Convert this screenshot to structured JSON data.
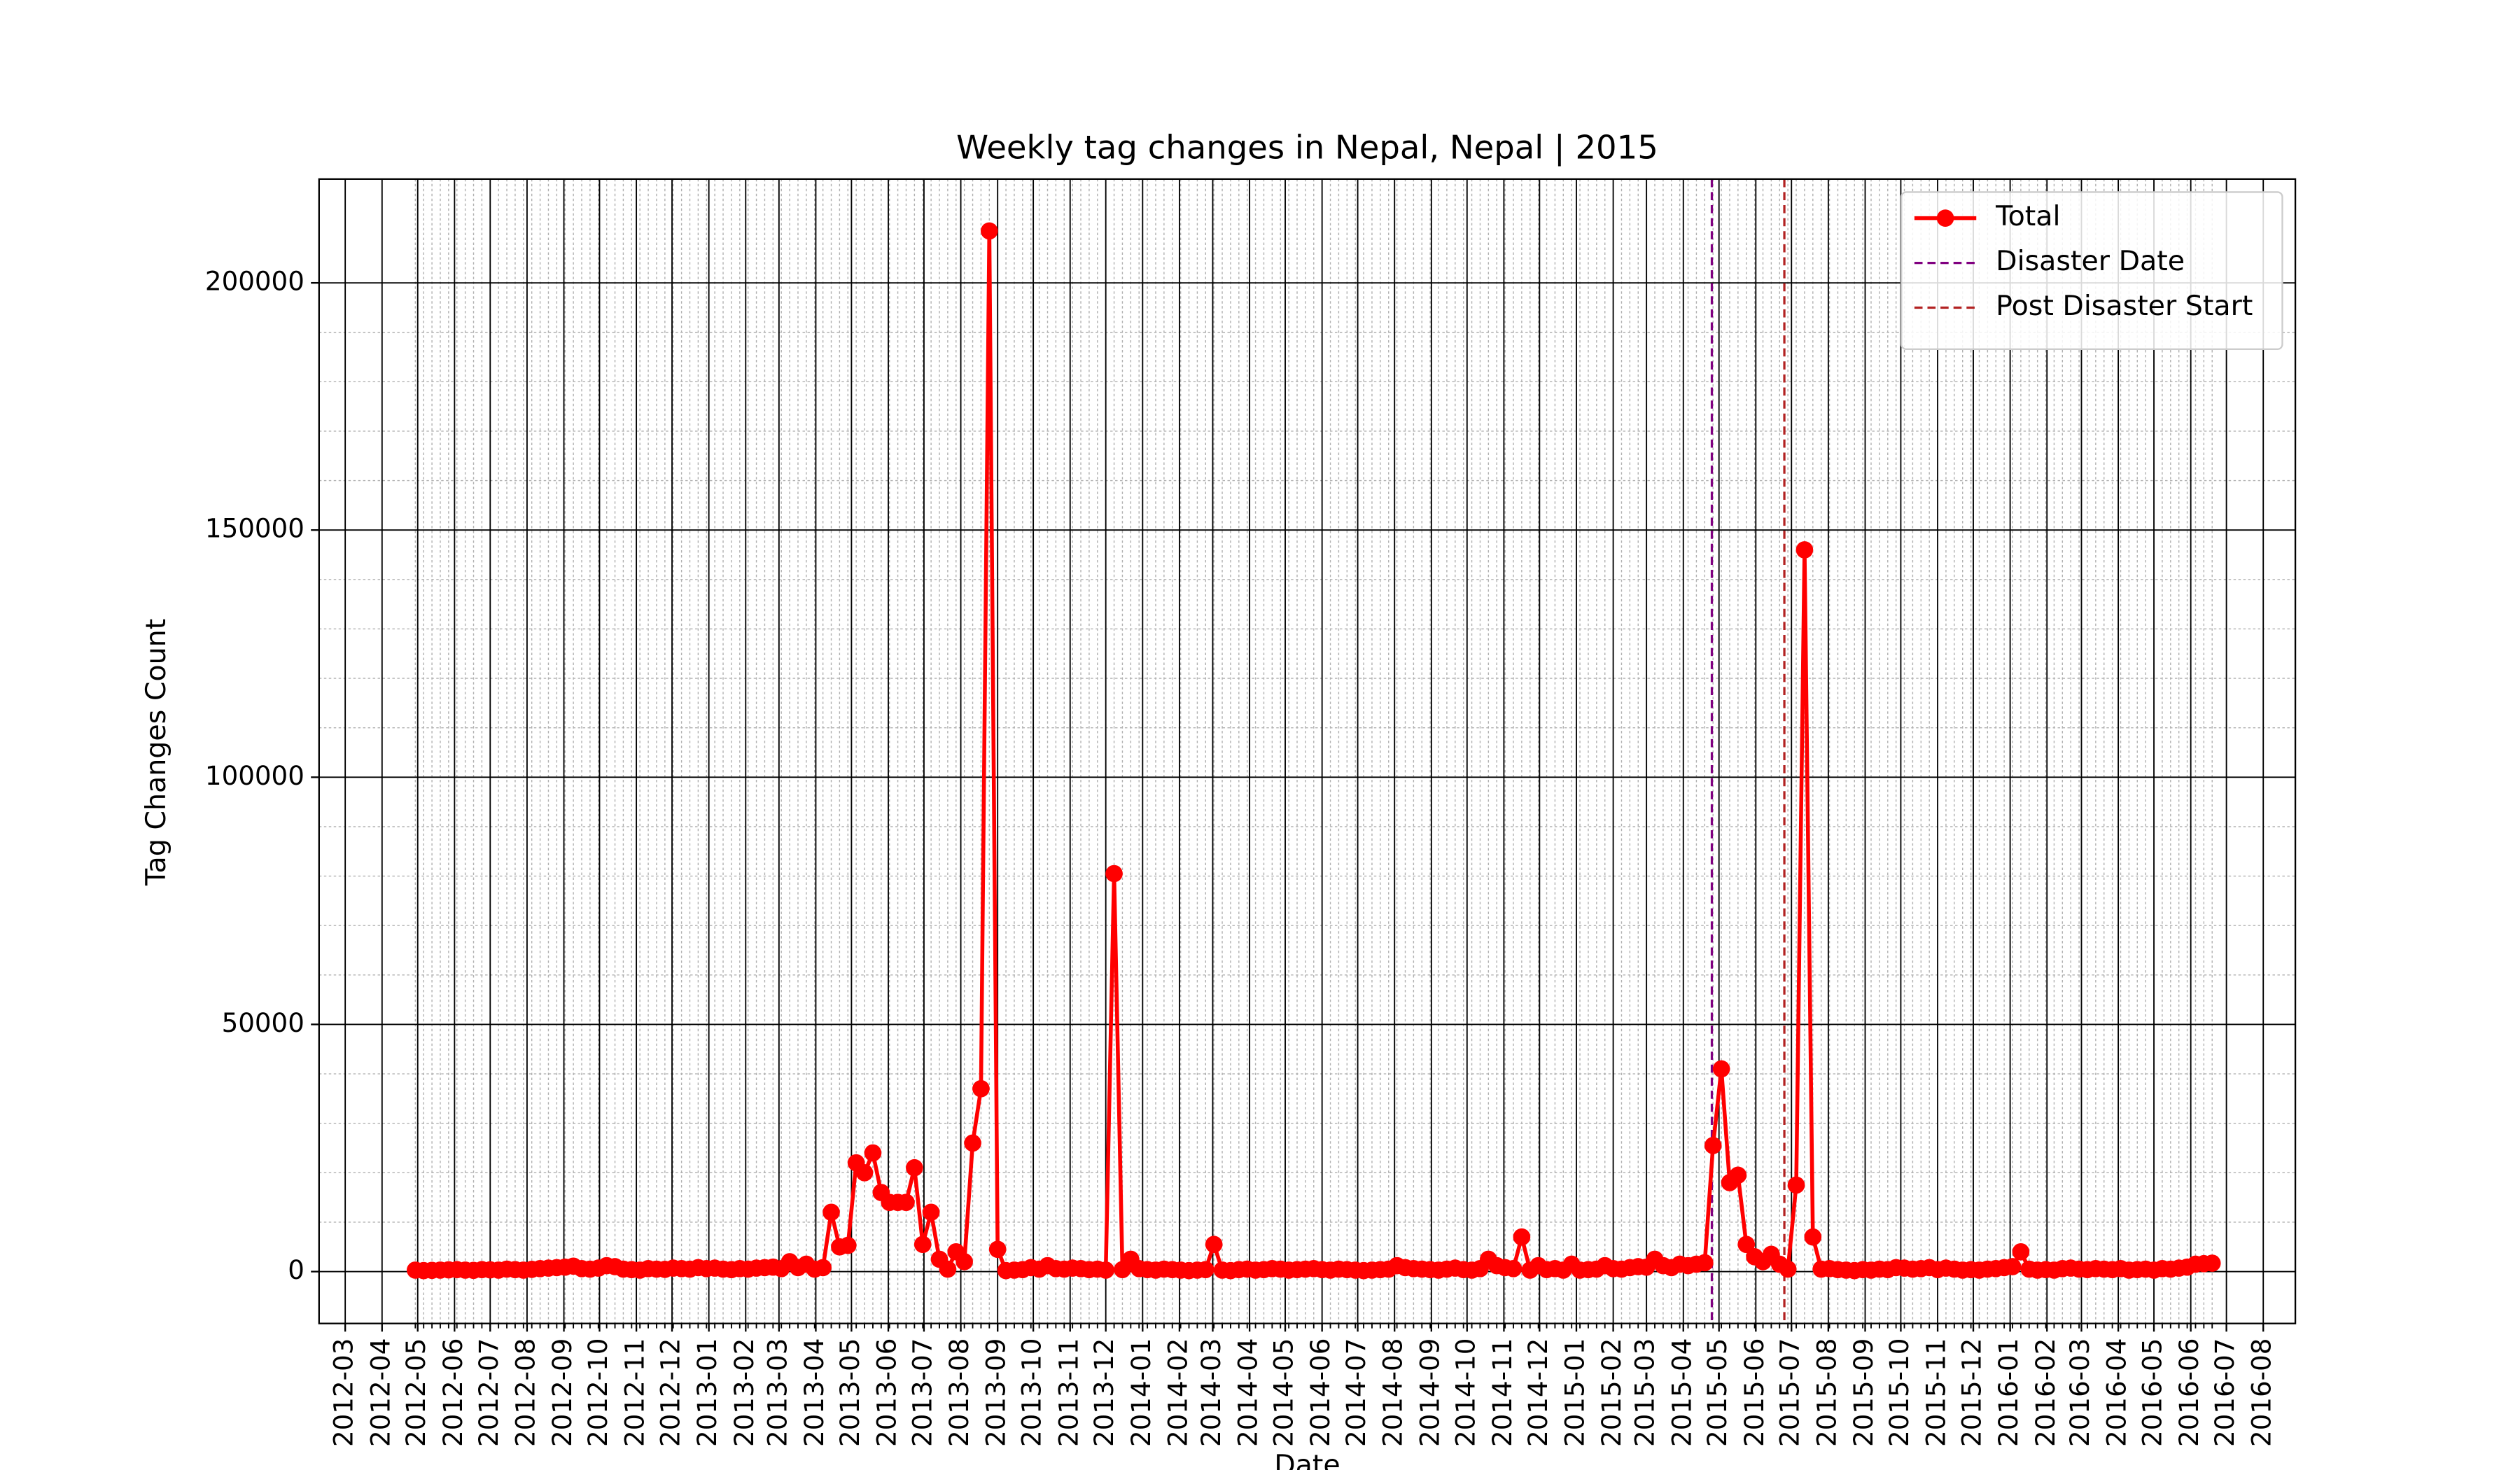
{
  "chart_data": {
    "type": "line",
    "title": "Weekly tag changes in Nepal, Nepal | 2015",
    "x_label": "Date",
    "y_label": "Tag Changes Count",
    "x": [
      "2012-04-29",
      "2012-05-06",
      "2012-05-13",
      "2012-05-20",
      "2012-05-27",
      "2012-06-03",
      "2012-06-10",
      "2012-06-17",
      "2012-06-24",
      "2012-07-01",
      "2012-07-08",
      "2012-07-15",
      "2012-07-22",
      "2012-07-29",
      "2012-08-05",
      "2012-08-12",
      "2012-08-19",
      "2012-08-26",
      "2012-09-02",
      "2012-09-09",
      "2012-09-16",
      "2012-09-23",
      "2012-09-30",
      "2012-10-07",
      "2012-10-14",
      "2012-10-21",
      "2012-10-28",
      "2012-11-04",
      "2012-11-11",
      "2012-11-18",
      "2012-11-25",
      "2012-12-02",
      "2012-12-09",
      "2012-12-16",
      "2012-12-23",
      "2012-12-30",
      "2013-01-06",
      "2013-01-13",
      "2013-01-20",
      "2013-01-27",
      "2013-02-03",
      "2013-02-10",
      "2013-02-17",
      "2013-02-24",
      "2013-03-03",
      "2013-03-10",
      "2013-03-17",
      "2013-03-24",
      "2013-03-31",
      "2013-04-07",
      "2013-04-14",
      "2013-04-21",
      "2013-04-28",
      "2013-05-05",
      "2013-05-12",
      "2013-05-19",
      "2013-05-26",
      "2013-06-02",
      "2013-06-09",
      "2013-06-16",
      "2013-06-23",
      "2013-06-30",
      "2013-07-07",
      "2013-07-14",
      "2013-07-21",
      "2013-07-28",
      "2013-08-04",
      "2013-08-11",
      "2013-08-18",
      "2013-08-25",
      "2013-09-01",
      "2013-09-08",
      "2013-09-15",
      "2013-09-22",
      "2013-09-29",
      "2013-10-06",
      "2013-10-13",
      "2013-10-20",
      "2013-10-27",
      "2013-11-03",
      "2013-11-10",
      "2013-11-17",
      "2013-11-24",
      "2013-12-01",
      "2013-12-08",
      "2013-12-15",
      "2013-12-22",
      "2013-12-29",
      "2014-01-05",
      "2014-01-12",
      "2014-01-19",
      "2014-01-26",
      "2014-02-02",
      "2014-02-09",
      "2014-02-16",
      "2014-02-23",
      "2014-03-02",
      "2014-03-09",
      "2014-03-16",
      "2014-03-23",
      "2014-03-30",
      "2014-04-06",
      "2014-04-13",
      "2014-04-20",
      "2014-04-27",
      "2014-05-04",
      "2014-05-11",
      "2014-05-18",
      "2014-05-25",
      "2014-06-01",
      "2014-06-08",
      "2014-06-15",
      "2014-06-22",
      "2014-06-29",
      "2014-07-06",
      "2014-07-13",
      "2014-07-20",
      "2014-07-27",
      "2014-08-03",
      "2014-08-10",
      "2014-08-17",
      "2014-08-24",
      "2014-08-31",
      "2014-09-07",
      "2014-09-14",
      "2014-09-21",
      "2014-09-28",
      "2014-10-05",
      "2014-10-12",
      "2014-10-19",
      "2014-10-26",
      "2014-11-02",
      "2014-11-09",
      "2014-11-16",
      "2014-11-23",
      "2014-11-30",
      "2014-12-07",
      "2014-12-14",
      "2014-12-21",
      "2014-12-28",
      "2015-01-04",
      "2015-01-11",
      "2015-01-18",
      "2015-01-25",
      "2015-02-01",
      "2015-02-08",
      "2015-02-15",
      "2015-02-22",
      "2015-03-01",
      "2015-03-08",
      "2015-03-15",
      "2015-03-22",
      "2015-03-29",
      "2015-04-05",
      "2015-04-12",
      "2015-04-19",
      "2015-04-26",
      "2015-05-03",
      "2015-05-10",
      "2015-05-17",
      "2015-05-24",
      "2015-05-31",
      "2015-06-07",
      "2015-06-14",
      "2015-06-21",
      "2015-06-28",
      "2015-07-05",
      "2015-07-12",
      "2015-07-19",
      "2015-07-26",
      "2015-08-02",
      "2015-08-09",
      "2015-08-16",
      "2015-08-23",
      "2015-08-30",
      "2015-09-06",
      "2015-09-13",
      "2015-09-20",
      "2015-09-27",
      "2015-10-04",
      "2015-10-11",
      "2015-10-18",
      "2015-10-25",
      "2015-11-01",
      "2015-11-08",
      "2015-11-15",
      "2015-11-22",
      "2015-11-29",
      "2015-12-06",
      "2015-12-13",
      "2015-12-20",
      "2015-12-27",
      "2016-01-03",
      "2016-01-10",
      "2016-01-17",
      "2016-01-24",
      "2016-01-31",
      "2016-02-07",
      "2016-02-14",
      "2016-02-21",
      "2016-02-28",
      "2016-03-06",
      "2016-03-13",
      "2016-03-20",
      "2016-03-27",
      "2016-04-03",
      "2016-04-10",
      "2016-04-17",
      "2016-04-24",
      "2016-05-01",
      "2016-05-08",
      "2016-05-15",
      "2016-05-22",
      "2016-05-29",
      "2016-06-05",
      "2016-06-12",
      "2016-06-19"
    ],
    "series": [
      {
        "name": "Total",
        "color": "#ff0000",
        "values": [
          300,
          200,
          250,
          300,
          350,
          400,
          300,
          250,
          400,
          350,
          300,
          500,
          400,
          300,
          450,
          600,
          700,
          800,
          900,
          1100,
          600,
          500,
          700,
          1200,
          1000,
          500,
          400,
          300,
          600,
          500,
          450,
          700,
          600,
          500,
          800,
          600,
          700,
          500,
          400,
          600,
          500,
          700,
          800,
          900,
          600,
          2000,
          800,
          1500,
          500,
          800,
          12000,
          5000,
          5300,
          22000,
          20000,
          24000,
          16000,
          14000,
          14000,
          14000,
          21000,
          5500,
          12000,
          2500,
          500,
          4000,
          2000,
          26000,
          37000,
          210500,
          4500,
          200,
          300,
          400,
          800,
          500,
          1200,
          600,
          500,
          700,
          600,
          400,
          500,
          300,
          80500,
          400,
          2500,
          600,
          400,
          300,
          500,
          400,
          300,
          200,
          300,
          400,
          5500,
          300,
          200,
          400,
          500,
          300,
          400,
          600,
          500,
          300,
          400,
          500,
          600,
          400,
          300,
          500,
          400,
          300,
          200,
          300,
          400,
          500,
          1200,
          800,
          600,
          500,
          400,
          300,
          500,
          700,
          400,
          300,
          600,
          2500,
          1200,
          800,
          600,
          7000,
          300,
          1200,
          400,
          600,
          300,
          1500,
          300,
          400,
          500,
          1200,
          600,
          500,
          800,
          1000,
          900,
          2500,
          1200,
          800,
          1500,
          1200,
          1500,
          1800,
          25500,
          41000,
          18000,
          19500,
          5500,
          3000,
          2000,
          3500,
          1500,
          500,
          17500,
          146000,
          7000,
          500,
          600,
          400,
          300,
          200,
          400,
          300,
          500,
          400,
          800,
          700,
          500,
          600,
          800,
          400,
          700,
          500,
          300,
          400,
          300,
          500,
          600,
          800,
          1000,
          4000,
          500,
          300,
          400,
          300,
          600,
          700,
          500,
          400,
          600,
          500,
          400,
          600,
          300,
          400,
          500,
          300,
          600,
          500,
          700,
          900,
          1500,
          1600,
          1700
        ]
      }
    ],
    "vlines": [
      {
        "name": "Disaster Date",
        "x": "2015-04-25",
        "color": "#800080"
      },
      {
        "name": "Post Disaster Start",
        "x": "2015-06-25",
        "color": "#b22222"
      }
    ],
    "xlim": [
      "2012-02-08",
      "2016-08-28"
    ],
    "xticks": [
      "2012-03",
      "2012-04",
      "2012-05",
      "2012-06",
      "2012-07",
      "2012-08",
      "2012-09",
      "2012-10",
      "2012-11",
      "2012-12",
      "2013-01",
      "2013-02",
      "2013-03",
      "2013-04",
      "2013-05",
      "2013-06",
      "2013-07",
      "2013-08",
      "2013-09",
      "2013-10",
      "2013-11",
      "2013-12",
      "2014-01",
      "2014-02",
      "2014-03",
      "2014-04",
      "2014-05",
      "2014-06",
      "2014-07",
      "2014-08",
      "2014-09",
      "2014-10",
      "2014-11",
      "2014-12",
      "2015-01",
      "2015-02",
      "2015-03",
      "2015-04",
      "2015-05",
      "2015-06",
      "2015-07",
      "2015-08",
      "2015-09",
      "2015-10",
      "2015-11",
      "2015-12",
      "2016-01",
      "2016-02",
      "2016-03",
      "2016-04",
      "2016-05",
      "2016-06",
      "2016-07",
      "2016-08"
    ],
    "ylim": [
      -10500,
      221000
    ],
    "yticks": [
      0,
      50000,
      100000,
      150000,
      200000
    ],
    "grid": true,
    "minor_grid": true,
    "legend": "upper right"
  }
}
